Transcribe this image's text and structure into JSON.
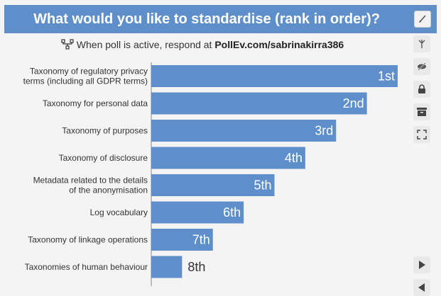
{
  "header": {
    "title": "What would you like to standardise (rank in order)?"
  },
  "respond": {
    "prefix": "When poll is active, respond at",
    "url": "PollEv.com/sabrinakirra386"
  },
  "toolbar": {
    "edit_icon": "pencil-icon",
    "icons": [
      "branch-icon",
      "eye-slash-icon",
      "lock-icon",
      "archive-icon",
      "fullscreen-icon"
    ],
    "nav": [
      "play-icon",
      "back-icon"
    ]
  },
  "colors": {
    "bar": "#5f8fca",
    "header": "#5f8fca"
  },
  "chart_data": {
    "type": "bar",
    "orientation": "horizontal",
    "title": "What would you like to standardise (rank in order)?",
    "categories": [
      [
        "Taxonomy of regulatory privacy",
        "terms (including all GDPR terms)"
      ],
      [
        "Taxonomy for personal data"
      ],
      [
        "Taxonomy of purposes"
      ],
      [
        "Taxonomy of disclosure"
      ],
      [
        "Metadata related to the details",
        "of the anonymisation"
      ],
      [
        "Log vocabulary"
      ],
      [
        "Taxonomy of linkage operations"
      ],
      [
        "Taxonomies of human behaviour"
      ]
    ],
    "values": [
      8,
      7,
      6,
      5,
      4,
      3,
      2,
      1
    ],
    "data_labels": [
      "1st",
      "2nd",
      "3rd",
      "4th",
      "5th",
      "6th",
      "7th",
      "8th"
    ],
    "xlim": [
      0,
      8
    ],
    "grid": false,
    "legend": "none"
  }
}
